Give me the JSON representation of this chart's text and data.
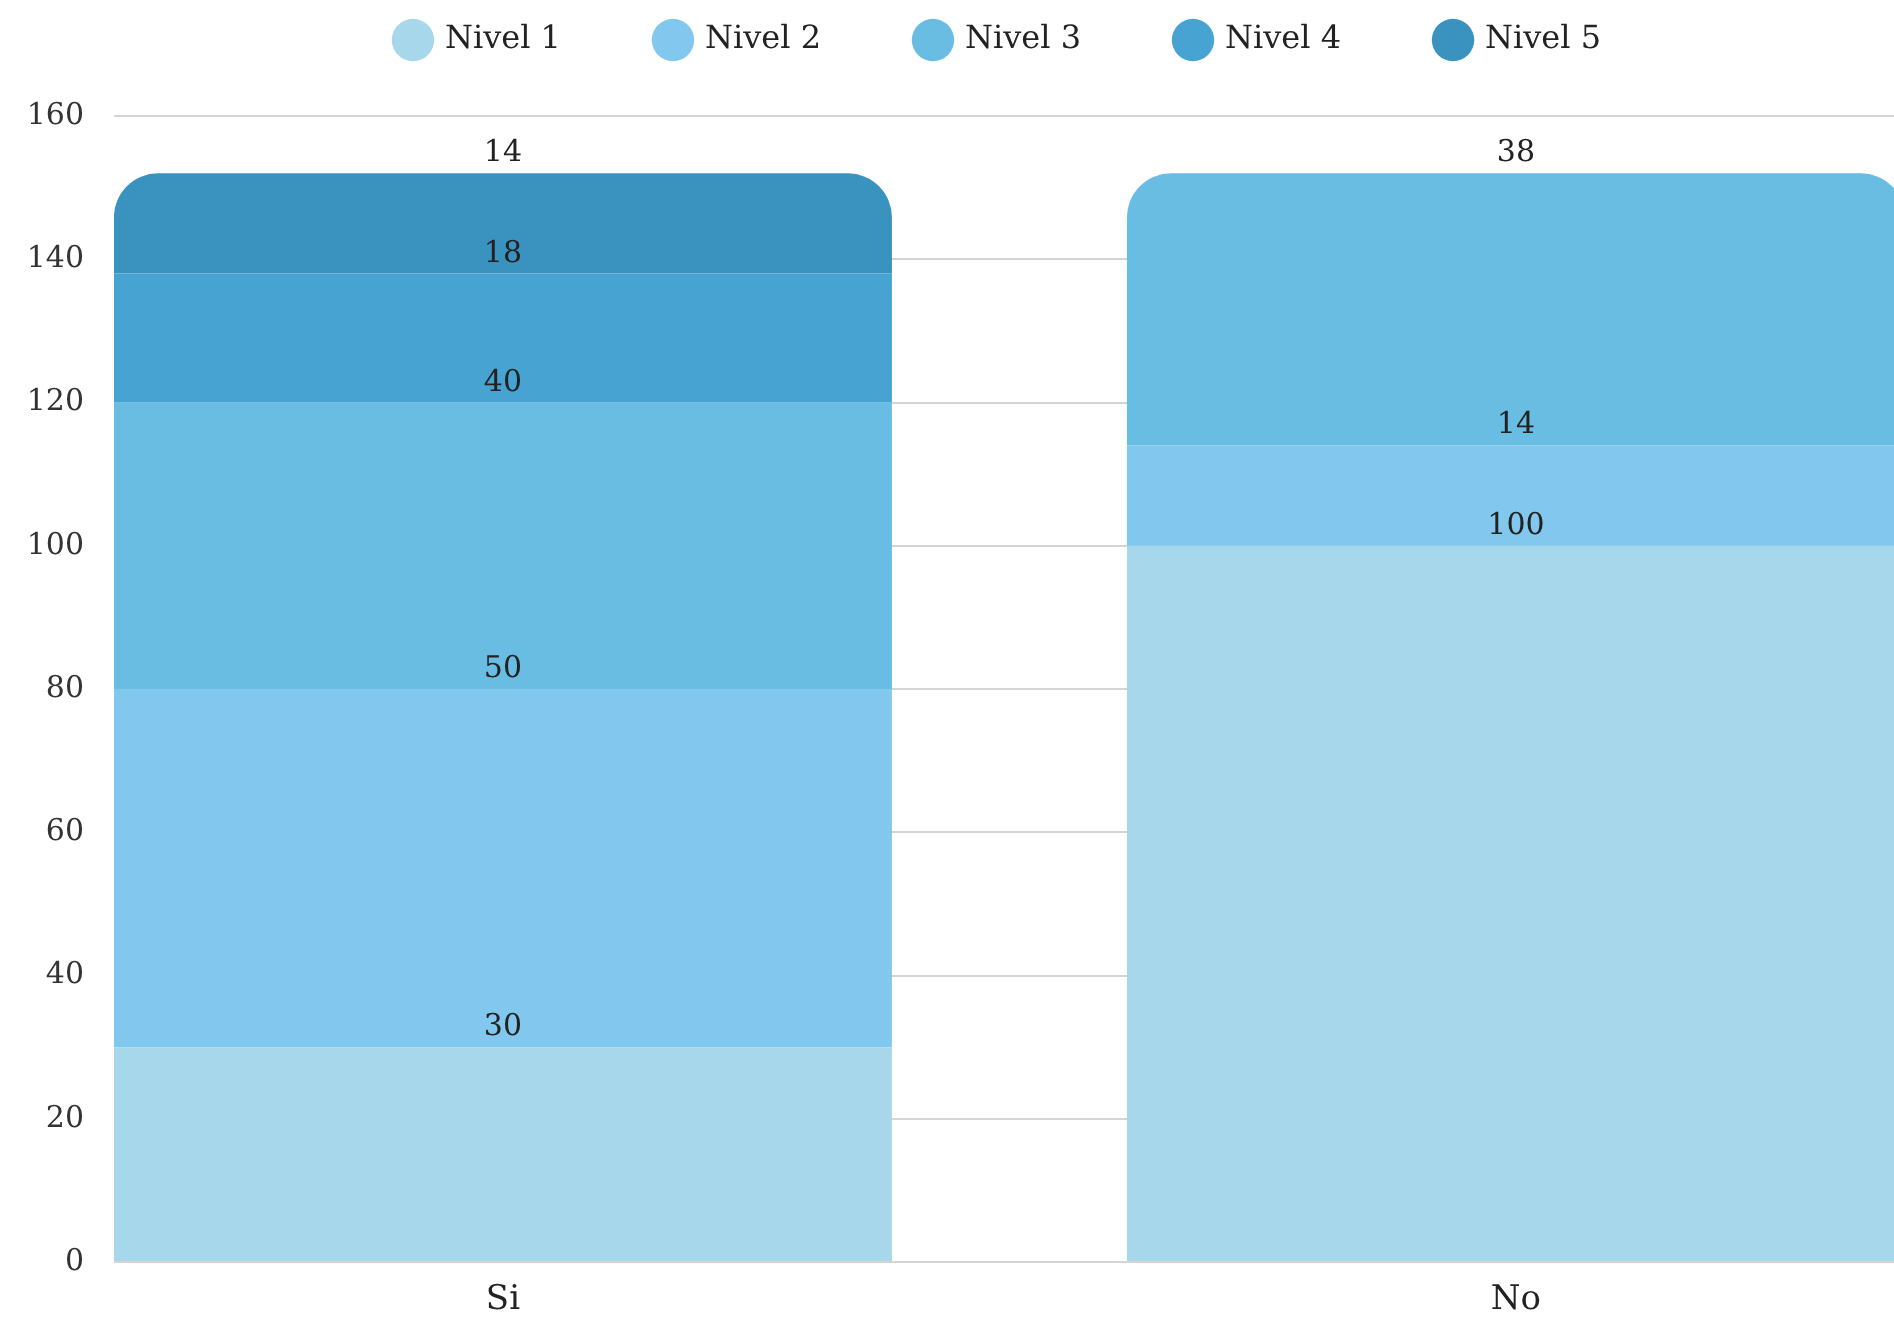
{
  "chart_data": {
    "type": "bar",
    "stacked": true,
    "categories": [
      "Si",
      "No"
    ],
    "series": [
      {
        "name": "Nivel 1",
        "color": "#a6d7ea",
        "values": [
          30,
          100
        ]
      },
      {
        "name": "Nivel 2",
        "color": "#82c8ee",
        "values": [
          50,
          14
        ]
      },
      {
        "name": "Nivel 3",
        "color": "#69bde3",
        "values": [
          40,
          38
        ]
      },
      {
        "name": "Nivel 4",
        "color": "#47a4d2",
        "values": [
          18,
          null
        ]
      },
      {
        "name": "Nivel 5",
        "color": "#3a93bf",
        "values": [
          14,
          null
        ]
      }
    ],
    "ylim": [
      0,
      160
    ],
    "yticks": [
      0,
      20,
      40,
      60,
      80,
      100,
      120,
      140,
      160
    ],
    "grid": "y",
    "legend": "top",
    "data_labels": true
  }
}
